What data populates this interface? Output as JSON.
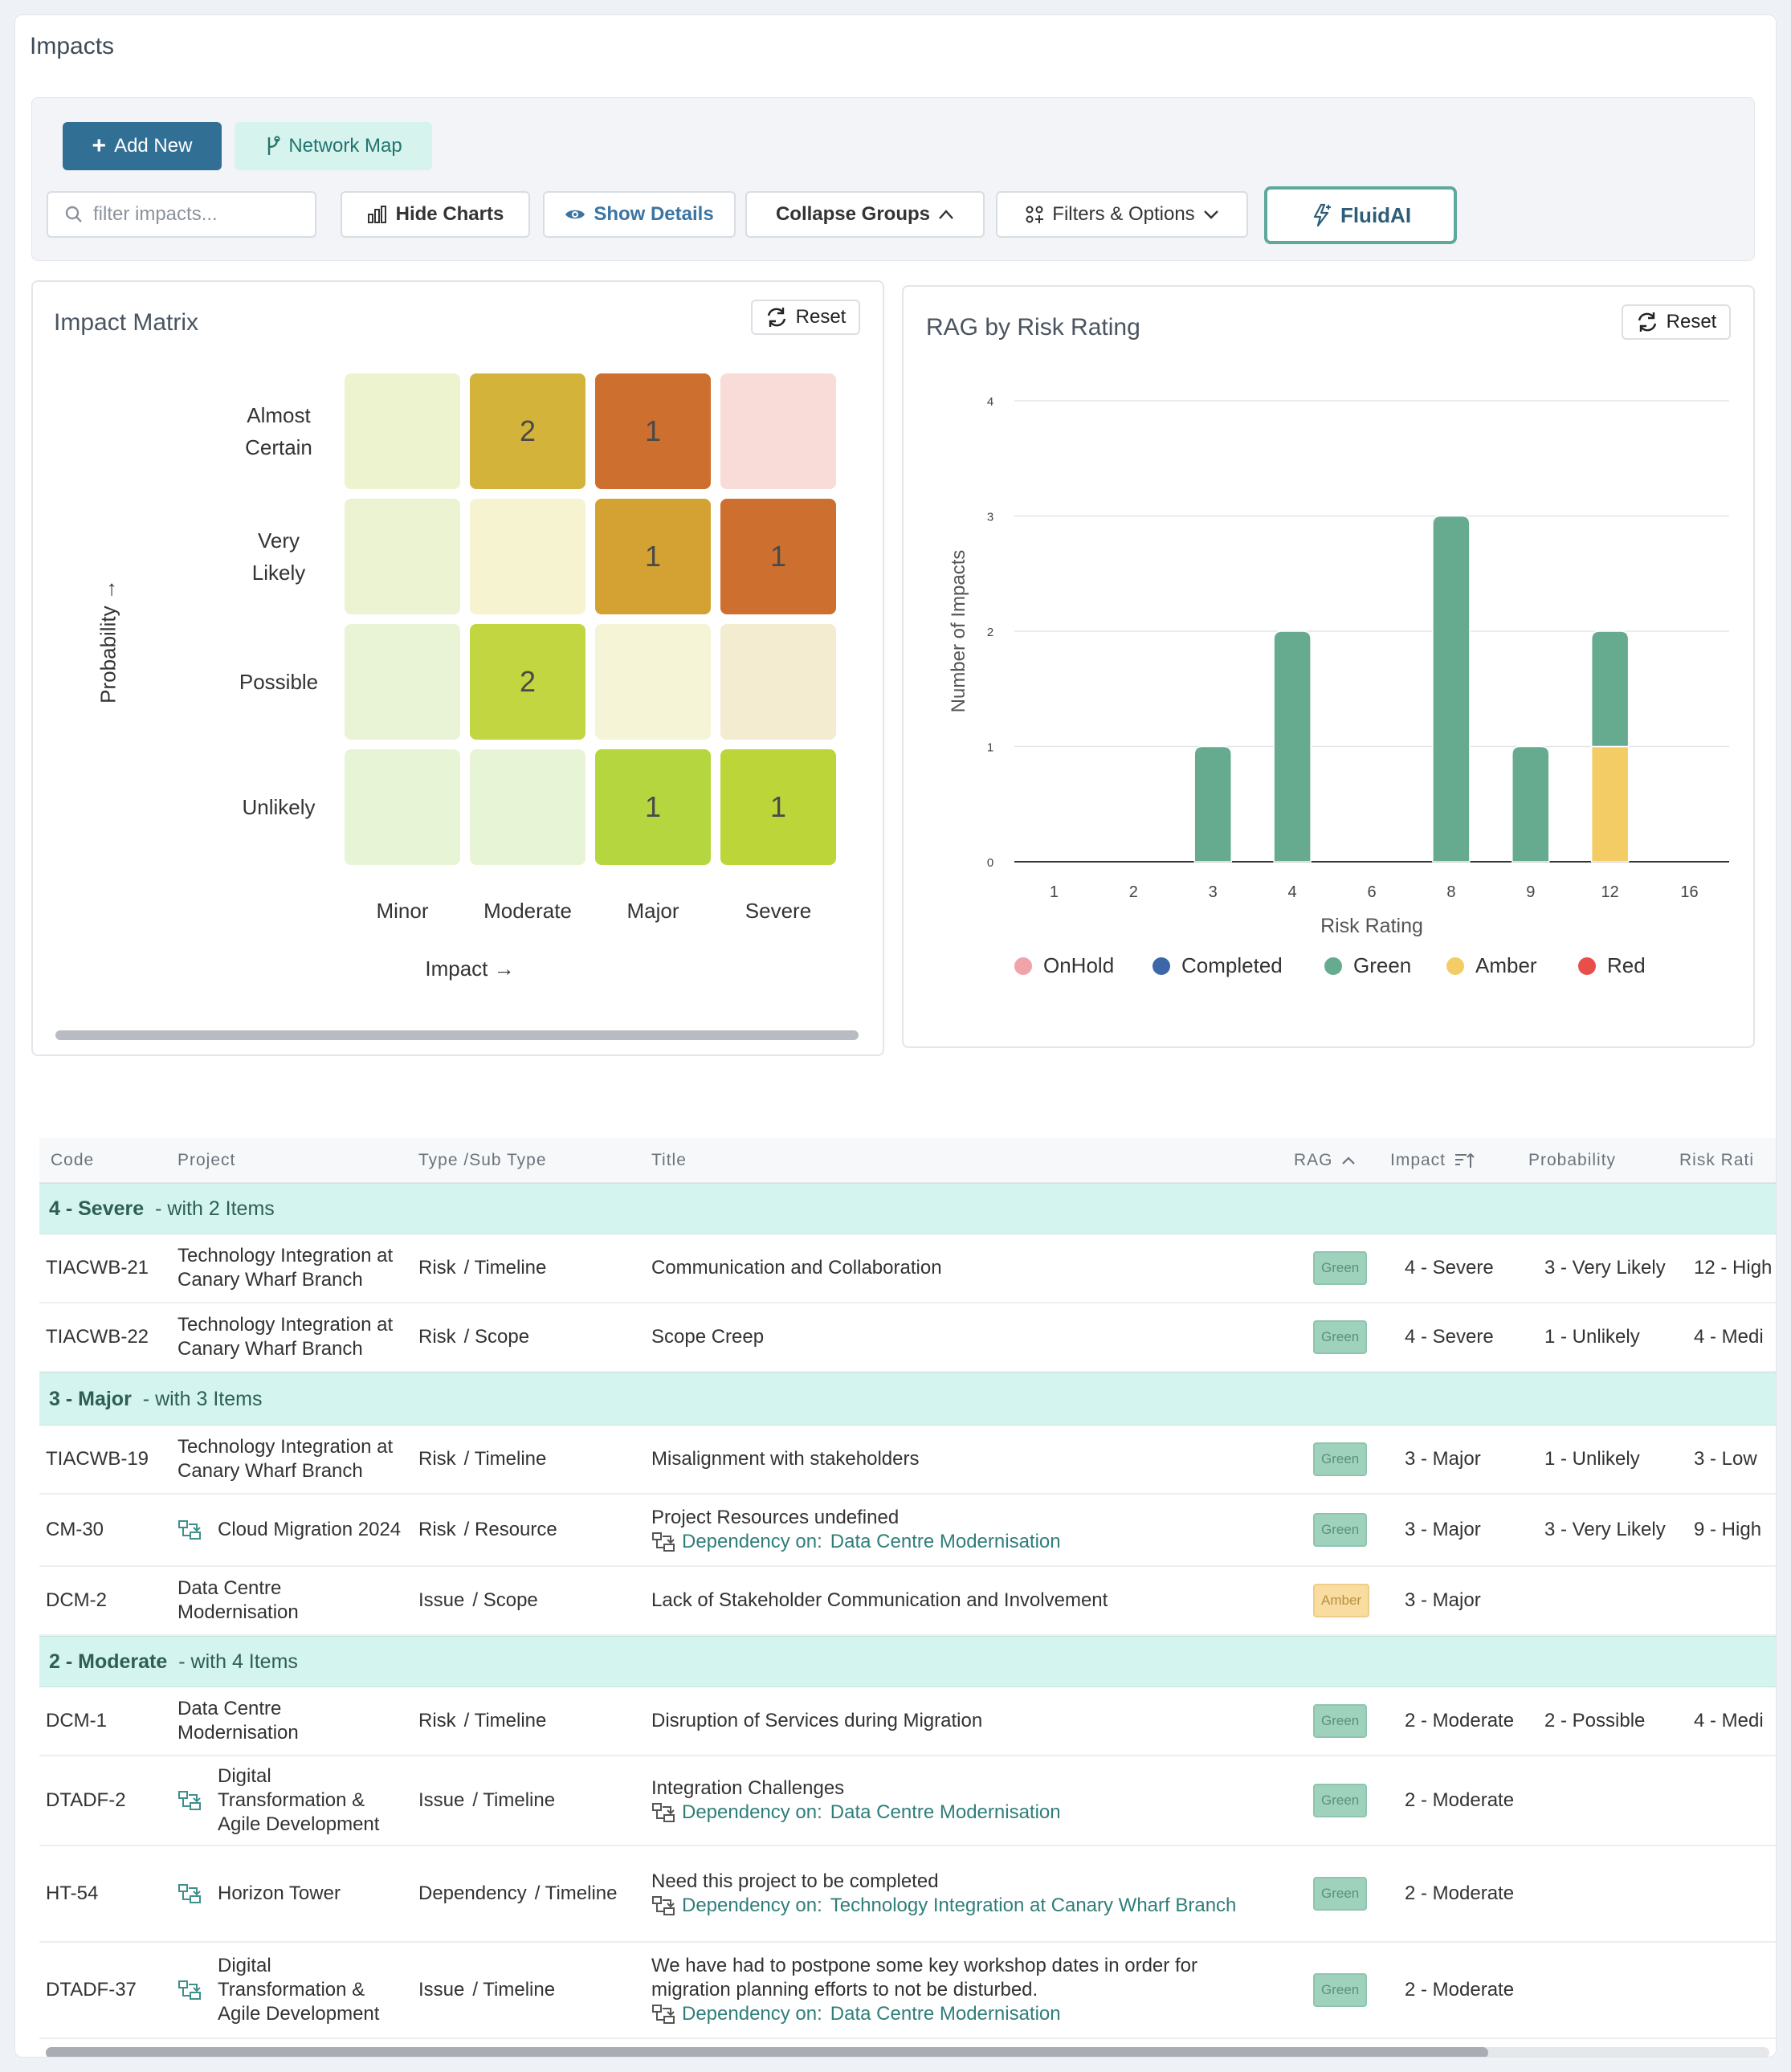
{
  "page": {
    "title": "Impacts"
  },
  "toolbar": {
    "add_new": "Add New",
    "network_map": "Network Map",
    "search_placeholder": "filter impacts...",
    "hide_charts": "Hide Charts",
    "show_details": "Show Details",
    "collapse_groups": "Collapse Groups",
    "filters_options": "Filters & Options",
    "fluidai": "FluidAI"
  },
  "matrix": {
    "title": "Impact Matrix",
    "reset": "Reset",
    "y_axis_label": "Probability →",
    "x_axis_label": "Impact →",
    "rows": [
      {
        "label": "Almost Certain",
        "cells": [
          {
            "value": "",
            "color": "#eef3cf"
          },
          {
            "value": "2",
            "color": "#d4b33a"
          },
          {
            "value": "1",
            "color": "#cd6f2e"
          },
          {
            "value": "",
            "color": "#f9dbd7"
          }
        ]
      },
      {
        "label": "Very Likely",
        "cells": [
          {
            "value": "",
            "color": "#ebf3d2"
          },
          {
            "value": "",
            "color": "#f6f4d0"
          },
          {
            "value": "1",
            "color": "#d3a232"
          },
          {
            "value": "1",
            "color": "#cd6f2e"
          }
        ]
      },
      {
        "label": "Possible",
        "cells": [
          {
            "value": "",
            "color": "#e9f4d6"
          },
          {
            "value": "2",
            "color": "#c1d640"
          },
          {
            "value": "",
            "color": "#f6f4d7"
          },
          {
            "value": "",
            "color": "#f4ecd0"
          }
        ]
      },
      {
        "label": "Unlikely",
        "cells": [
          {
            "value": "",
            "color": "#e7f4d6"
          },
          {
            "value": "",
            "color": "#e8f4d6"
          },
          {
            "value": "1",
            "color": "#b5d63e"
          },
          {
            "value": "1",
            "color": "#bcd63a"
          }
        ]
      }
    ],
    "columns": [
      "Minor",
      "Moderate",
      "Major",
      "Severe"
    ]
  },
  "rag_chart": {
    "title": "RAG by Risk Rating",
    "reset": "Reset"
  },
  "chart_data": {
    "type": "bar",
    "stacked": true,
    "title": "RAG by Risk Rating",
    "xlabel": "Risk Rating",
    "ylabel": "Number of Impacts",
    "categories": [
      "1",
      "2",
      "3",
      "4",
      "6",
      "8",
      "9",
      "12",
      "16"
    ],
    "ylim": [
      0,
      4
    ],
    "yticks": [
      "0",
      "1",
      "2",
      "3",
      "4"
    ],
    "grid": true,
    "legend_position": "bottom",
    "series": [
      {
        "name": "OnHold",
        "color": "#f0a3a8",
        "values": [
          0,
          0,
          0,
          0,
          0,
          0,
          0,
          0,
          0
        ]
      },
      {
        "name": "Completed",
        "color": "#3d67a8",
        "values": [
          0,
          0,
          0,
          0,
          0,
          0,
          0,
          0,
          0
        ]
      },
      {
        "name": "Amber",
        "color": "#f4cc66",
        "values": [
          0,
          0,
          0,
          0,
          0,
          0,
          0,
          1,
          0
        ]
      },
      {
        "name": "Green",
        "color": "#66ab90",
        "values": [
          0,
          0,
          1,
          2,
          0,
          3,
          1,
          1,
          0
        ]
      },
      {
        "name": "Red",
        "color": "#e94f4a",
        "values": [
          0,
          0,
          0,
          0,
          0,
          0,
          0,
          0,
          0
        ]
      }
    ],
    "legend_order": [
      "OnHold",
      "Completed",
      "Green",
      "Amber",
      "Red"
    ]
  },
  "table": {
    "headers": {
      "code": "Code",
      "project": "Project",
      "type": "Type /Sub Type",
      "title": "Title",
      "rag": "RAG",
      "impact": "Impact",
      "probability": "Probability",
      "risk": "Risk Rati"
    },
    "groups": [
      {
        "name": "4 - Severe",
        "suffix": "- with 2 Items"
      },
      {
        "name": "3 - Major",
        "suffix": "- with 3 Items"
      },
      {
        "name": "2 - Moderate",
        "suffix": "- with 4 Items"
      }
    ],
    "rows": [
      {
        "code": "TIACWB-21",
        "project": "Technology Integration at Canary Wharf Branch",
        "type": "Risk",
        "subtype": "/ Timeline",
        "title": "Communication and Collaboration",
        "rag": "Green",
        "impact": "4 - Severe",
        "probability": "3 - Very Likely",
        "risk": "12 - High"
      },
      {
        "code": "TIACWB-22",
        "project": "Technology Integration at Canary Wharf Branch",
        "type": "Risk",
        "subtype": "/ Scope",
        "title": "Scope Creep",
        "rag": "Green",
        "impact": "4 - Severe",
        "probability": "1 - Unlikely",
        "risk": "4 - Medi"
      },
      {
        "code": "TIACWB-19",
        "project": "Technology Integration at Canary Wharf Branch",
        "type": "Risk",
        "subtype": "/ Timeline",
        "title": "Misalignment with stakeholders",
        "rag": "Green",
        "impact": "3 - Major",
        "probability": "1 - Unlikely",
        "risk": "3 - Low"
      },
      {
        "code": "CM-30",
        "project": "Cloud Migration 2024",
        "type": "Risk",
        "subtype": "/ Resource",
        "title": "Project Resources undefined",
        "dep_label": "Dependency on:",
        "dep": "Data Centre Modernisation",
        "rag": "Green",
        "impact": "3 - Major",
        "probability": "3 - Very Likely",
        "risk": "9 - High"
      },
      {
        "code": "DCM-2",
        "project": "Data Centre Modernisation",
        "type": "Issue",
        "subtype": "/ Scope",
        "title": "Lack of Stakeholder Communication and Involvement",
        "rag": "Amber",
        "impact": "3 - Major",
        "probability": "",
        "risk": ""
      },
      {
        "code": "DCM-1",
        "project": "Data Centre Modernisation",
        "type": "Risk",
        "subtype": "/ Timeline",
        "title": "Disruption of Services during Migration",
        "rag": "Green",
        "impact": "2 - Moderate",
        "probability": "2 - Possible",
        "risk": "4 - Medi"
      },
      {
        "code": "DTADF-2",
        "project": "Digital Transformation & Agile Development",
        "type": "Issue",
        "subtype": "/ Timeline",
        "title": "Integration Challenges",
        "dep_label": "Dependency on:",
        "dep": "Data Centre Modernisation",
        "rag": "Green",
        "impact": "2 - Moderate",
        "probability": "",
        "risk": ""
      },
      {
        "code": "HT-54",
        "project": "Horizon Tower",
        "type": "Dependency",
        "subtype": "/ Timeline",
        "title": "Need this project to be completed",
        "dep_label": "Dependency on:",
        "dep": "Technology Integration at Canary Wharf Branch",
        "rag": "Green",
        "impact": "2 - Moderate",
        "probability": "",
        "risk": ""
      },
      {
        "code": "DTADF-37",
        "project": "Digital Transformation & Agile Development",
        "type": "Issue",
        "subtype": "/ Timeline",
        "title": "We have had to postpone some key workshop dates in order for migration planning efforts to not be disturbed.",
        "dep_label": "Dependency on:",
        "dep": "Data Centre Modernisation",
        "rag": "Green",
        "impact": "2 - Moderate",
        "probability": "",
        "risk": ""
      }
    ]
  }
}
